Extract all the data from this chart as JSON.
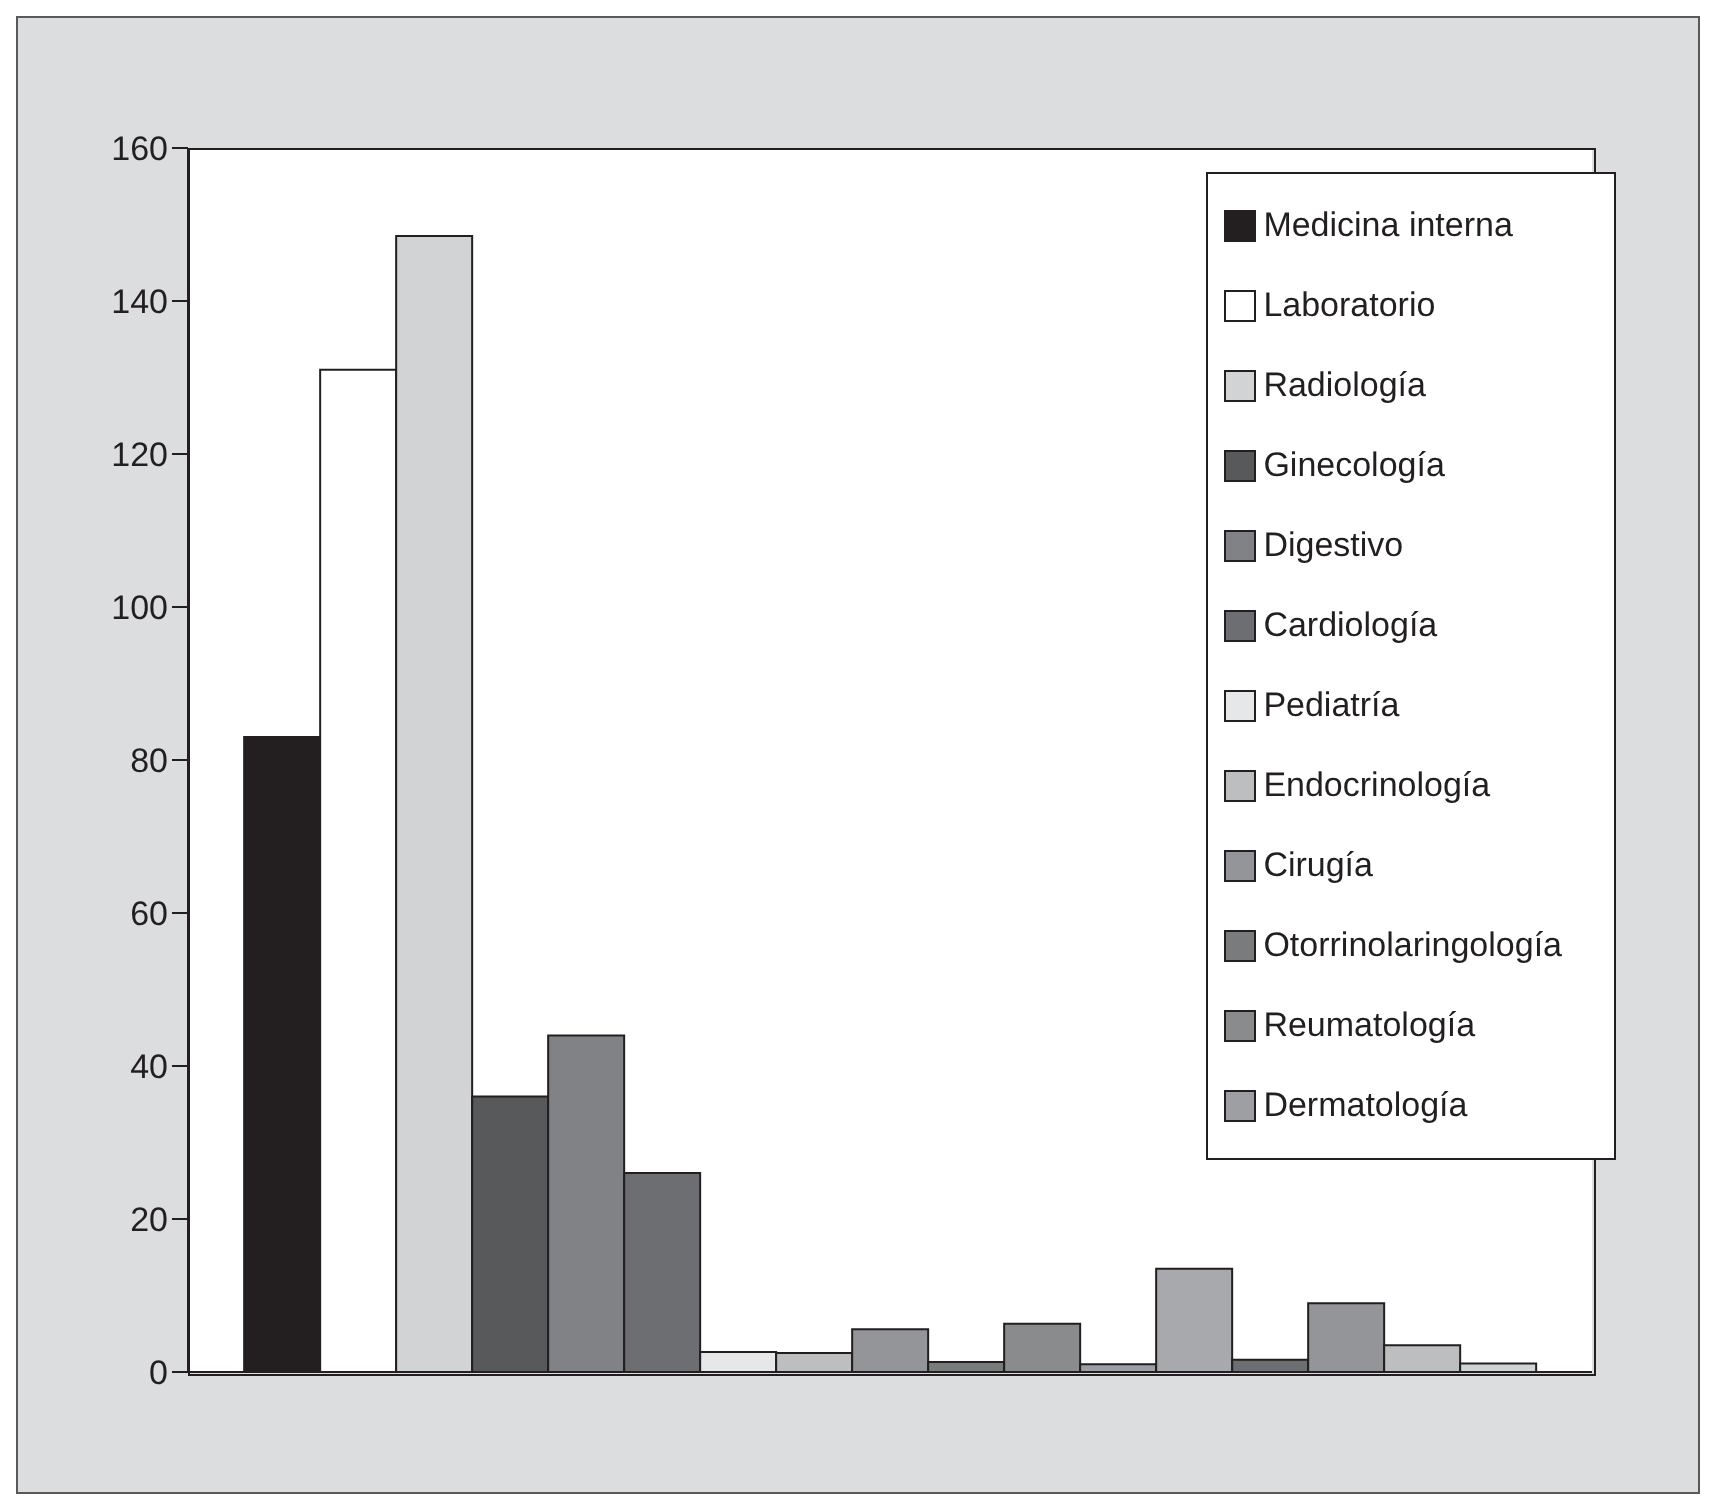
{
  "chart_data": {
    "type": "bar",
    "categories": [
      null
    ],
    "ylim": [
      0,
      160
    ],
    "yticks": [
      0,
      20,
      40,
      60,
      80,
      100,
      120,
      140,
      160
    ],
    "grid": false,
    "legend": "top right",
    "series": [
      {
        "name": "Medicina interna",
        "color": "#231f20",
        "values": [
          83
        ]
      },
      {
        "name": "Laboratorio",
        "color": "#ffffff",
        "values": [
          131
        ]
      },
      {
        "name": "Radiología",
        "color": "#d1d3d4",
        "values": [
          148.5
        ]
      },
      {
        "name": "Ginecología",
        "color": "#58595b",
        "values": [
          36
        ]
      },
      {
        "name": "Digestivo",
        "color": "#808285",
        "values": [
          44
        ]
      },
      {
        "name": "Cardiología",
        "color": "#6d6e71",
        "values": [
          26
        ]
      },
      {
        "name": "Pediatría",
        "color": "#e6e7e8",
        "values": [
          2.6
        ]
      },
      {
        "name": "Endocrinología",
        "color": "#bcbec0",
        "values": [
          2.5
        ]
      },
      {
        "name": "Cirugía",
        "color": "#939598",
        "values": [
          5.6
        ]
      },
      {
        "name": "Otorrinolaringología",
        "color": "#7a7b7d",
        "values": [
          1.3
        ]
      },
      {
        "name": "Reumatología",
        "color": "#8a8b8d",
        "values": [
          6.3
        ]
      },
      {
        "name": "Dermatología",
        "color": "#9d9fa2",
        "values": [
          1
        ]
      },
      {
        "color": "#a7a9ac",
        "values": [
          13.5
        ]
      },
      {
        "color": "#6d6e71",
        "values": [
          1.6
        ]
      },
      {
        "color": "#939598",
        "values": [
          9
        ]
      },
      {
        "color": "#bcbec0",
        "values": [
          3.5
        ]
      },
      {
        "color": "#d1d3d4",
        "values": [
          1.1
        ]
      }
    ]
  }
}
